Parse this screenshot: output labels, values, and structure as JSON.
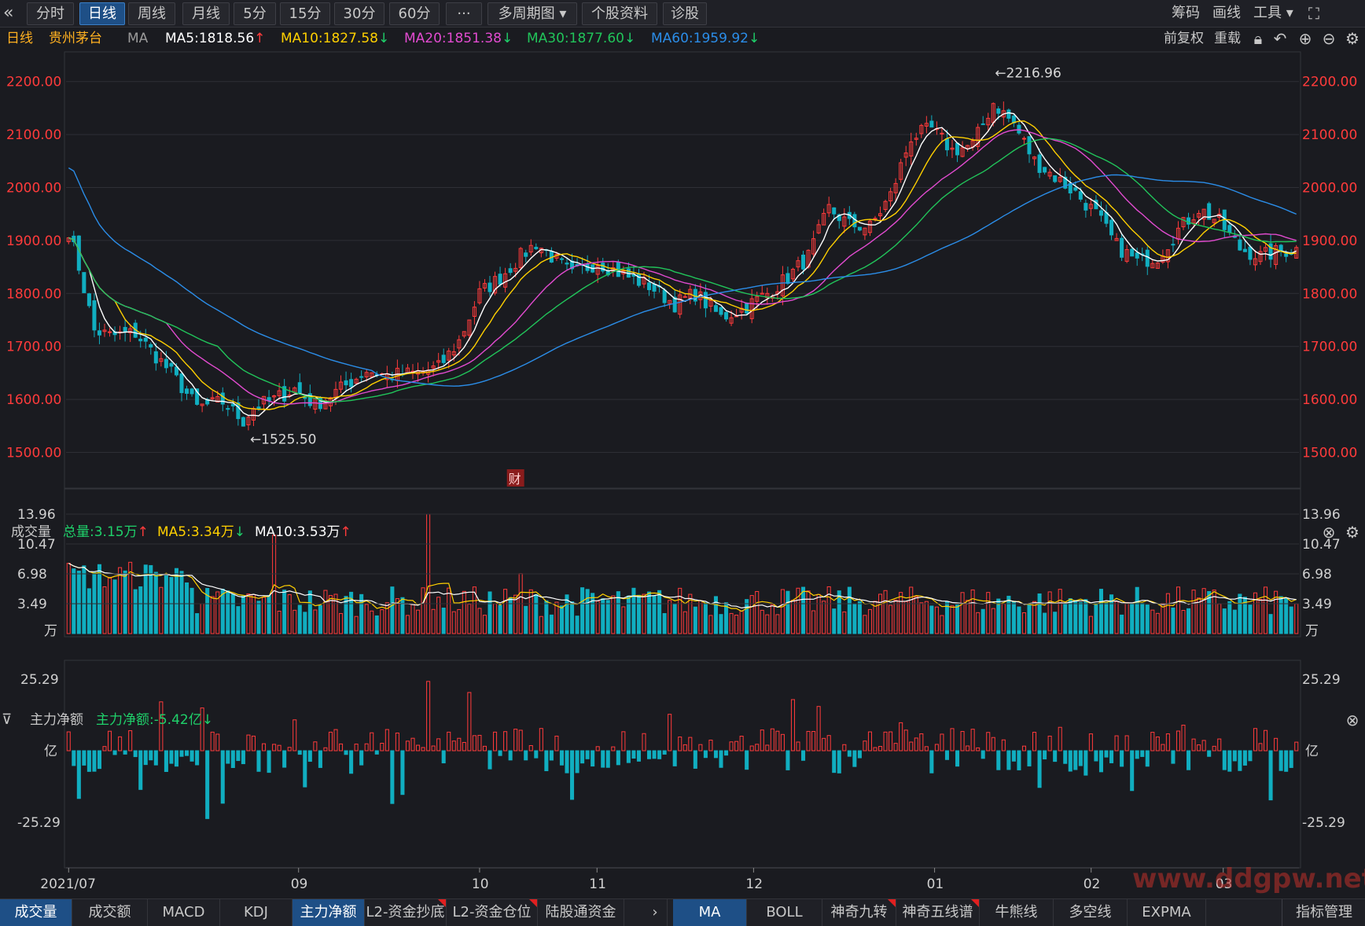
{
  "toolbar": {
    "left_icon": "«",
    "buttons": [
      "分时",
      "日线",
      "周线",
      "月线",
      "5分",
      "15分",
      "30分",
      "60分",
      "···",
      "多周期图 ▾",
      "个股资料",
      "诊股"
    ],
    "right": [
      "筹码",
      "画线",
      "工具 ▾"
    ],
    "expand_icon": "expand-icon"
  },
  "ma_bar": {
    "period": "日线",
    "stock": "贵州茅台",
    "indicator": "MA",
    "ma5": "MA5:1818.56",
    "ma10": "MA10:1827.58",
    "ma20": "MA20:1851.38",
    "ma30": "MA30:1877.60",
    "ma60": "MA60:1959.92",
    "right_a": "前复权",
    "right_b": "重载",
    "colors": {
      "ma5": "#ffffff",
      "ma10": "#ffd000",
      "ma20": "#e24bd0",
      "ma30": "#21c45a",
      "ma60": "#2b8de8"
    }
  },
  "volume_bar": {
    "title": "成交量",
    "total": "总量:3.15万",
    "ma5": "MA5:3.34万",
    "ma10": "MA10:3.53万"
  },
  "flow_bar": {
    "title": "主力净额",
    "value": "主力净额:-5.42亿"
  },
  "bottom_left_tabs": [
    "成交量",
    "成交额",
    "MACD",
    "KDJ",
    "主力净额",
    "L2-资金抄底",
    "L2-资金仓位",
    "陆股通资金"
  ],
  "bottom_right_tabs": [
    "MA",
    "BOLL",
    "神奇九转",
    "神奇五线谱",
    "牛熊线",
    "多空线",
    "EXPMA"
  ],
  "bottom_manage": "指标管理",
  "watermark": "www.ddgpw.net",
  "chart_data": [
    {
      "type": "candlestick",
      "title": "贵州茅台 日线",
      "y_ticks": [
        "2200.00",
        "2100.00",
        "2000.00",
        "1900.00",
        "1800.00",
        "1700.00",
        "1600.00",
        "1500.00"
      ],
      "ylim": [
        1480,
        2250
      ],
      "x_ticks": [
        "2021/07",
        "09",
        "10",
        "11",
        "12",
        "01",
        "02",
        "03"
      ],
      "x_tick_index": [
        0,
        47,
        84,
        108,
        140,
        177,
        209,
        236
      ],
      "annotations": [
        {
          "text": "←2216.96",
          "index": 180,
          "value": 2216.96
        },
        {
          "text": "←1525.50",
          "index": 35,
          "value": 1525.5
        },
        {
          "text": "财",
          "index": 87
        }
      ],
      "count": 240,
      "anchors": [
        [
          0,
          1920
        ],
        [
          2,
          1850
        ],
        [
          5,
          1730
        ],
        [
          8,
          1720
        ],
        [
          13,
          1725
        ],
        [
          20,
          1650
        ],
        [
          25,
          1585
        ],
        [
          30,
          1595
        ],
        [
          34,
          1560
        ],
        [
          36,
          1585
        ],
        [
          40,
          1600
        ],
        [
          44,
          1620
        ],
        [
          48,
          1590
        ],
        [
          53,
          1620
        ],
        [
          58,
          1655
        ],
        [
          62,
          1645
        ],
        [
          68,
          1650
        ],
        [
          72,
          1660
        ],
        [
          76,
          1710
        ],
        [
          80,
          1800
        ],
        [
          84,
          1830
        ],
        [
          88,
          1870
        ],
        [
          91,
          1895
        ],
        [
          94,
          1870
        ],
        [
          98,
          1835
        ],
        [
          103,
          1860
        ],
        [
          108,
          1835
        ],
        [
          113,
          1815
        ],
        [
          118,
          1780
        ],
        [
          122,
          1800
        ],
        [
          127,
          1755
        ],
        [
          131,
          1770
        ],
        [
          136,
          1800
        ],
        [
          140,
          1830
        ],
        [
          144,
          1870
        ],
        [
          148,
          1960
        ],
        [
          152,
          1930
        ],
        [
          156,
          1925
        ],
        [
          160,
          1985
        ],
        [
          164,
          2095
        ],
        [
          168,
          2110
        ],
        [
          172,
          2070
        ],
        [
          176,
          2080
        ],
        [
          180,
          2160
        ],
        [
          184,
          2120
        ],
        [
          188,
          2050
        ],
        [
          192,
          2020
        ],
        [
          196,
          1990
        ],
        [
          200,
          1950
        ],
        [
          204,
          1890
        ],
        [
          208,
          1860
        ],
        [
          212,
          1870
        ],
        [
          216,
          1920
        ],
        [
          220,
          1960
        ],
        [
          224,
          1935
        ],
        [
          228,
          1885
        ],
        [
          232,
          1870
        ],
        [
          236,
          1880
        ],
        [
          240,
          1885
        ],
        [
          244,
          1830
        ],
        [
          248,
          1840
        ],
        [
          252,
          1815
        ]
      ],
      "series": [
        {
          "name": "MA5",
          "color": "#ffffff",
          "period": 5
        },
        {
          "name": "MA10",
          "color": "#ffd000",
          "period": 10
        },
        {
          "name": "MA20",
          "color": "#e24bd0",
          "period": 20
        },
        {
          "name": "MA30",
          "color": "#21c45a",
          "period": 30
        },
        {
          "name": "MA60",
          "color": "#2b8de8",
          "period": 60
        }
      ]
    },
    {
      "type": "bar",
      "title": "成交量",
      "unit": "万",
      "y_ticks": [
        "13.96",
        "10.47",
        "6.98",
        "3.49"
      ],
      "ylim": [
        0,
        13.96
      ],
      "series": [
        {
          "name": "MA5",
          "color": "#ffd000"
        },
        {
          "name": "MA10",
          "color": "#ffffff"
        }
      ]
    },
    {
      "type": "bar",
      "title": "主力净额",
      "unit": "亿",
      "y_ticks": [
        "25.29",
        "-25.29"
      ],
      "ylim": [
        -25.29,
        25.29
      ]
    }
  ]
}
